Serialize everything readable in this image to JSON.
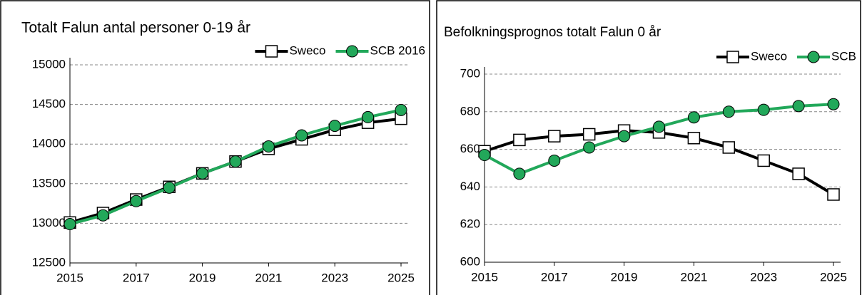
{
  "chart_data": [
    {
      "type": "line",
      "title": "Totalt Falun antal personer 0-19 år",
      "x": [
        2015,
        2016,
        2017,
        2018,
        2019,
        2020,
        2021,
        2022,
        2023,
        2024,
        2025
      ],
      "xlim": [
        2015,
        2025
      ],
      "xticks": [
        2015,
        2017,
        2019,
        2021,
        2023,
        2025
      ],
      "ylim": [
        12500,
        15000
      ],
      "yticks": [
        12500,
        13000,
        13500,
        14000,
        14500,
        15000
      ],
      "grid": true,
      "legend": "upper right",
      "series": [
        {
          "name": "Sweco",
          "color": "#000000",
          "marker": "square",
          "values": [
            13010,
            13130,
            13300,
            13460,
            13630,
            13780,
            13940,
            14060,
            14180,
            14270,
            14320
          ]
        },
        {
          "name": "SCB 2016",
          "color": "#22a85a",
          "marker": "circle",
          "values": [
            12990,
            13100,
            13280,
            13450,
            13630,
            13780,
            13970,
            14110,
            14230,
            14340,
            14430
          ]
        }
      ]
    },
    {
      "type": "line",
      "title": "Befolkningsprognos totalt Falun 0 år",
      "x": [
        2015,
        2016,
        2017,
        2018,
        2019,
        2020,
        2021,
        2022,
        2023,
        2024,
        2025
      ],
      "xlim": [
        2015,
        2025
      ],
      "xticks": [
        2015,
        2017,
        2019,
        2021,
        2023,
        2025
      ],
      "ylim": [
        600,
        700
      ],
      "yticks": [
        600,
        620,
        640,
        660,
        680,
        700
      ],
      "grid": true,
      "legend": "upper right",
      "series": [
        {
          "name": "Sweco",
          "color": "#000000",
          "marker": "square",
          "values": [
            659,
            665,
            667,
            668,
            670,
            669,
            666,
            661,
            654,
            647,
            636
          ]
        },
        {
          "name": "SCB",
          "color": "#22a85a",
          "marker": "circle",
          "values": [
            657,
            647,
            654,
            661,
            667,
            672,
            677,
            680,
            681,
            683,
            684
          ]
        }
      ]
    }
  ]
}
